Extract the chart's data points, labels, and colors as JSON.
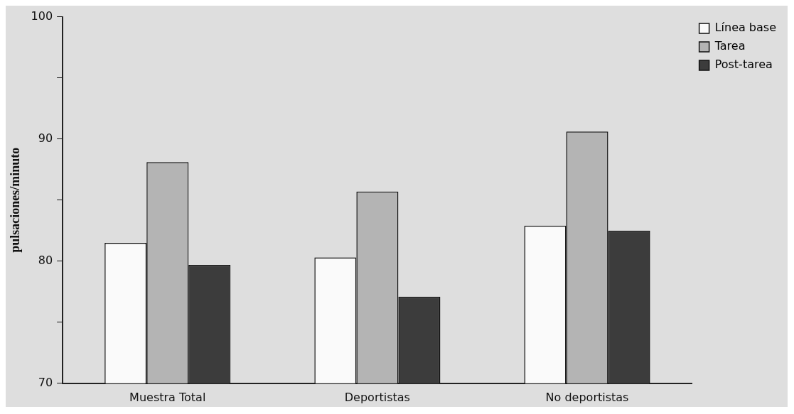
{
  "chart_data": {
    "type": "bar",
    "ylabel": "pulsaciones/minuto",
    "categories": [
      "Muestra Total",
      "Deportistas",
      "No deportistas"
    ],
    "series": [
      {
        "name": "Línea base",
        "color": "#fafafa",
        "values": [
          81.5,
          80.3,
          82.9
        ]
      },
      {
        "name": "Tarea",
        "color": "#b4b4b4",
        "values": [
          88.1,
          85.7,
          90.6
        ]
      },
      {
        "name": "Post-tarea",
        "color": "#3c3c3c",
        "values": [
          79.7,
          77.1,
          82.5
        ]
      }
    ],
    "ylim": [
      70,
      100
    ],
    "yticks": [
      70,
      {
        "value": 75,
        "label": null
      },
      80,
      {
        "value": 85,
        "label": null
      },
      90,
      {
        "value": 95,
        "label": null
      },
      100
    ],
    "grid": false,
    "legend": "right"
  }
}
